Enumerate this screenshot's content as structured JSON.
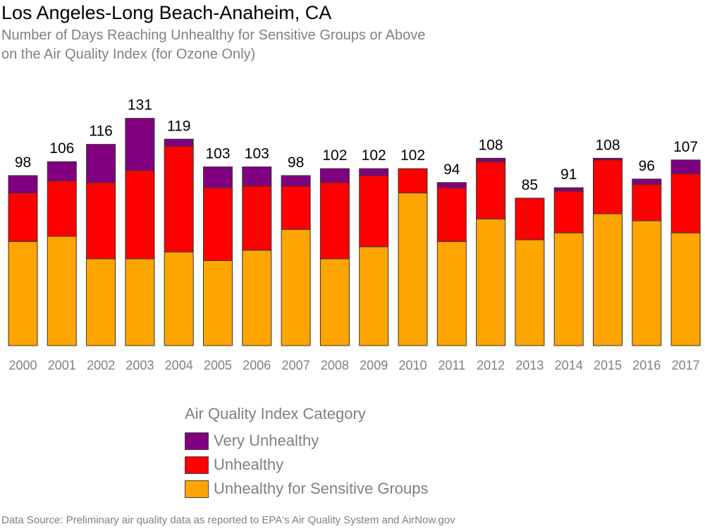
{
  "title": "Los Angeles-Long Beach-Anaheim, CA",
  "subtitle_lines": [
    "Number of Days Reaching Unhealthy for Sensitive Groups or Above",
    "on the Air Quality Index (for Ozone Only)"
  ],
  "legend": {
    "title": "Air Quality Index Category",
    "items": [
      {
        "label": "Very Unhealthy",
        "color": "#800080"
      },
      {
        "label": "Unhealthy",
        "color": "#ff0000"
      },
      {
        "label": "Unhealthy for Sensitive Groups",
        "color": "#ffa500"
      }
    ]
  },
  "source": "Data Source: Preliminary air quality data as reported to EPA's Air Quality System and AirNow.gov",
  "chart_data": {
    "type": "bar",
    "stacked": true,
    "categories": [
      "2000",
      "2001",
      "2002",
      "2003",
      "2004",
      "2005",
      "2006",
      "2007",
      "2008",
      "2009",
      "2010",
      "2011",
      "2012",
      "2013",
      "2014",
      "2015",
      "2016",
      "2017"
    ],
    "series": [
      {
        "name": "Unhealthy for Sensitive Groups",
        "color": "#ffa500",
        "values": [
          60,
          63,
          50,
          50,
          54,
          49,
          55,
          67,
          50,
          57,
          88,
          60,
          73,
          61,
          65,
          76,
          72,
          65
        ]
      },
      {
        "name": "Unhealthy",
        "color": "#ff0000",
        "values": [
          28,
          32,
          44,
          51,
          61,
          42,
          37,
          25,
          44,
          41,
          14,
          31,
          33,
          24,
          24,
          31,
          21,
          34
        ]
      },
      {
        "name": "Very Unhealthy",
        "color": "#800080",
        "values": [
          10,
          11,
          22,
          30,
          4,
          12,
          11,
          6,
          8,
          4,
          0,
          3,
          2,
          0,
          2,
          1,
          3,
          8
        ]
      }
    ],
    "totals": [
      98,
      106,
      116,
      131,
      119,
      103,
      103,
      98,
      102,
      102,
      102,
      94,
      108,
      85,
      91,
      108,
      96,
      107
    ],
    "ylim": [
      0,
      140
    ],
    "grid": false,
    "legend_position": "bottom"
  }
}
